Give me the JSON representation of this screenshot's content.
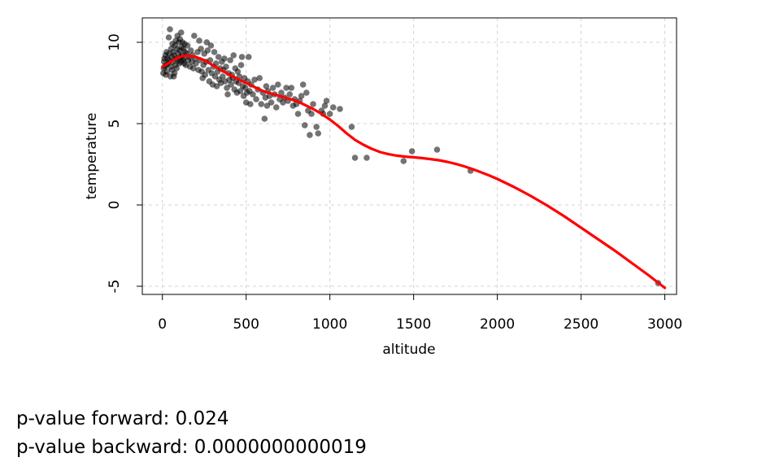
{
  "chart_data": {
    "type": "scatter",
    "xlabel": "altitude",
    "ylabel": "temperature",
    "xlim": [
      -120,
      3070
    ],
    "ylim": [
      -5.5,
      11.5
    ],
    "x_ticks": [
      0,
      500,
      1000,
      1500,
      2000,
      2500,
      3000
    ],
    "y_ticks": [
      -5,
      0,
      5,
      10
    ],
    "x_tick_labels": [
      "0",
      "500",
      "1000",
      "1500",
      "2000",
      "2500",
      "3000"
    ],
    "y_tick_labels": [
      "-5",
      "0",
      "5",
      "10"
    ],
    "grid": true,
    "point_color": "#000000",
    "point_opacity": 0.55,
    "curve_color": "#ff0000",
    "points": [
      [
        5,
        8.1
      ],
      [
        8,
        8.4
      ],
      [
        10,
        8.8
      ],
      [
        12,
        9.0
      ],
      [
        15,
        8.5
      ],
      [
        18,
        9.2
      ],
      [
        20,
        8.0
      ],
      [
        22,
        8.6
      ],
      [
        25,
        9.4
      ],
      [
        28,
        8.2
      ],
      [
        30,
        9.0
      ],
      [
        35,
        8.7
      ],
      [
        38,
        10.3
      ],
      [
        40,
        9.3
      ],
      [
        42,
        8.9
      ],
      [
        45,
        10.8
      ],
      [
        48,
        7.9
      ],
      [
        50,
        8.5
      ],
      [
        52,
        9.6
      ],
      [
        55,
        9.1
      ],
      [
        58,
        8.3
      ],
      [
        60,
        9.9
      ],
      [
        62,
        8.8
      ],
      [
        65,
        9.4
      ],
      [
        68,
        7.9
      ],
      [
        70,
        9.2
      ],
      [
        72,
        8.1
      ],
      [
        75,
        9.8
      ],
      [
        78,
        8.6
      ],
      [
        80,
        10.1
      ],
      [
        82,
        9.0
      ],
      [
        85,
        8.4
      ],
      [
        88,
        9.6
      ],
      [
        90,
        10.4
      ],
      [
        92,
        8.9
      ],
      [
        95,
        9.3
      ],
      [
        98,
        10.0
      ],
      [
        100,
        8.7
      ],
      [
        103,
        9.5
      ],
      [
        105,
        10.2
      ],
      [
        108,
        9.1
      ],
      [
        110,
        8.8
      ],
      [
        112,
        10.6
      ],
      [
        115,
        9.7
      ],
      [
        118,
        9.2
      ],
      [
        120,
        10.0
      ],
      [
        123,
        8.9
      ],
      [
        125,
        9.6
      ],
      [
        128,
        9.0
      ],
      [
        130,
        8.7
      ],
      [
        133,
        9.9
      ],
      [
        135,
        9.4
      ],
      [
        140,
        8.6
      ],
      [
        145,
        9.3
      ],
      [
        150,
        9.8
      ],
      [
        155,
        8.9
      ],
      [
        160,
        9.1
      ],
      [
        165,
        8.5
      ],
      [
        170,
        9.5
      ],
      [
        175,
        8.8
      ],
      [
        180,
        9.2
      ],
      [
        185,
        8.4
      ],
      [
        190,
        10.4
      ],
      [
        195,
        9.0
      ],
      [
        200,
        8.7
      ],
      [
        210,
        9.4
      ],
      [
        215,
        8.3
      ],
      [
        220,
        10.1
      ],
      [
        225,
        8.9
      ],
      [
        230,
        9.6
      ],
      [
        235,
        8.2
      ],
      [
        240,
        7.8
      ],
      [
        245,
        8.6
      ],
      [
        250,
        9.3
      ],
      [
        255,
        8.0
      ],
      [
        260,
        8.8
      ],
      [
        265,
        10.0
      ],
      [
        270,
        9.5
      ],
      [
        275,
        8.3
      ],
      [
        280,
        7.6
      ],
      [
        285,
        8.9
      ],
      [
        290,
        9.8
      ],
      [
        295,
        8.1
      ],
      [
        300,
        7.4
      ],
      [
        305,
        8.5
      ],
      [
        310,
        9.4
      ],
      [
        315,
        7.9
      ],
      [
        320,
        8.7
      ],
      [
        325,
        7.3
      ],
      [
        330,
        8.2
      ],
      [
        335,
        9.1
      ],
      [
        340,
        7.7
      ],
      [
        345,
        8.4
      ],
      [
        350,
        7.5
      ],
      [
        355,
        8.8
      ],
      [
        360,
        7.9
      ],
      [
        365,
        8.3
      ],
      [
        370,
        9.0
      ],
      [
        375,
        7.6
      ],
      [
        380,
        8.5
      ],
      [
        385,
        7.2
      ],
      [
        390,
        6.8
      ],
      [
        395,
        8.1
      ],
      [
        400,
        7.7
      ],
      [
        405,
        8.9
      ],
      [
        410,
        7.4
      ],
      [
        415,
        8.0
      ],
      [
        420,
        7.8
      ],
      [
        425,
        9.2
      ],
      [
        430,
        7.1
      ],
      [
        435,
        8.4
      ],
      [
        440,
        7.6
      ],
      [
        445,
        6.9
      ],
      [
        450,
        8.2
      ],
      [
        455,
        7.5
      ],
      [
        460,
        7.9
      ],
      [
        465,
        7.0
      ],
      [
        470,
        8.6
      ],
      [
        475,
        9.1
      ],
      [
        480,
        7.3
      ],
      [
        485,
        6.7
      ],
      [
        490,
        7.8
      ],
      [
        495,
        7.2
      ],
      [
        500,
        6.3
      ],
      [
        505,
        6.9
      ],
      [
        510,
        7.6
      ],
      [
        515,
        9.1
      ],
      [
        520,
        7.0
      ],
      [
        525,
        6.2
      ],
      [
        530,
        7.4
      ],
      [
        540,
        6.8
      ],
      [
        550,
        7.7
      ],
      [
        560,
        6.5
      ],
      [
        570,
        7.1
      ],
      [
        580,
        7.8
      ],
      [
        590,
        6.2
      ],
      [
        600,
        6.9
      ],
      [
        610,
        5.3
      ],
      [
        615,
        6.6
      ],
      [
        620,
        7.3
      ],
      [
        625,
        6.1
      ],
      [
        630,
        7.0
      ],
      [
        640,
        6.7
      ],
      [
        650,
        6.3
      ],
      [
        660,
        7.2
      ],
      [
        670,
        6.8
      ],
      [
        680,
        6.0
      ],
      [
        690,
        7.4
      ],
      [
        700,
        6.5
      ],
      [
        710,
        6.9
      ],
      [
        720,
        6.3
      ],
      [
        730,
        6.6
      ],
      [
        740,
        7.2
      ],
      [
        750,
        6.4
      ],
      [
        760,
        6.8
      ],
      [
        770,
        7.2
      ],
      [
        780,
        6.1
      ],
      [
        790,
        6.5
      ],
      [
        800,
        6.2
      ],
      [
        810,
        5.6
      ],
      [
        820,
        6.4
      ],
      [
        830,
        6.7
      ],
      [
        840,
        7.4
      ],
      [
        850,
        4.9
      ],
      [
        860,
        6.9
      ],
      [
        870,
        5.8
      ],
      [
        880,
        4.3
      ],
      [
        890,
        5.6
      ],
      [
        900,
        6.2
      ],
      [
        920,
        4.8
      ],
      [
        930,
        4.4
      ],
      [
        950,
        5.8
      ],
      [
        960,
        5.6
      ],
      [
        970,
        6.1
      ],
      [
        980,
        6.4
      ],
      [
        1000,
        5.6
      ],
      [
        1020,
        6.0
      ],
      [
        1060,
        5.9
      ],
      [
        1130,
        4.8
      ],
      [
        1150,
        2.9
      ],
      [
        1220,
        2.9
      ],
      [
        1440,
        2.7
      ],
      [
        1490,
        3.3
      ],
      [
        1640,
        3.4
      ],
      [
        1840,
        2.1
      ],
      [
        2960,
        -4.8
      ]
    ],
    "curve": [
      [
        0,
        8.5
      ],
      [
        50,
        8.8
      ],
      [
        100,
        9.1
      ],
      [
        150,
        9.2
      ],
      [
        200,
        9.1
      ],
      [
        250,
        8.9
      ],
      [
        300,
        8.6
      ],
      [
        350,
        8.3
      ],
      [
        400,
        8.0
      ],
      [
        450,
        7.75
      ],
      [
        500,
        7.5
      ],
      [
        550,
        7.25
      ],
      [
        600,
        7.0
      ],
      [
        650,
        6.85
      ],
      [
        700,
        6.7
      ],
      [
        750,
        6.55
      ],
      [
        800,
        6.4
      ],
      [
        850,
        6.15
      ],
      [
        900,
        5.9
      ],
      [
        950,
        5.6
      ],
      [
        1000,
        5.25
      ],
      [
        1050,
        4.85
      ],
      [
        1100,
        4.4
      ],
      [
        1150,
        4.0
      ],
      [
        1200,
        3.7
      ],
      [
        1250,
        3.45
      ],
      [
        1300,
        3.25
      ],
      [
        1350,
        3.12
      ],
      [
        1400,
        3.03
      ],
      [
        1450,
        2.97
      ],
      [
        1500,
        2.93
      ],
      [
        1550,
        2.88
      ],
      [
        1600,
        2.82
      ],
      [
        1650,
        2.75
      ],
      [
        1700,
        2.65
      ],
      [
        1750,
        2.53
      ],
      [
        1800,
        2.38
      ],
      [
        1850,
        2.21
      ],
      [
        1900,
        2.02
      ],
      [
        1950,
        1.82
      ],
      [
        2000,
        1.6
      ],
      [
        2100,
        1.1
      ],
      [
        2200,
        0.55
      ],
      [
        2300,
        -0.05
      ],
      [
        2400,
        -0.7
      ],
      [
        2500,
        -1.4
      ],
      [
        2600,
        -2.1
      ],
      [
        2700,
        -2.8
      ],
      [
        2800,
        -3.55
      ],
      [
        2900,
        -4.3
      ],
      [
        3000,
        -5.1
      ]
    ]
  },
  "stats": {
    "forward": "p-value forward:  0.024",
    "backward": "p-value backward:  0.0000000000019"
  }
}
